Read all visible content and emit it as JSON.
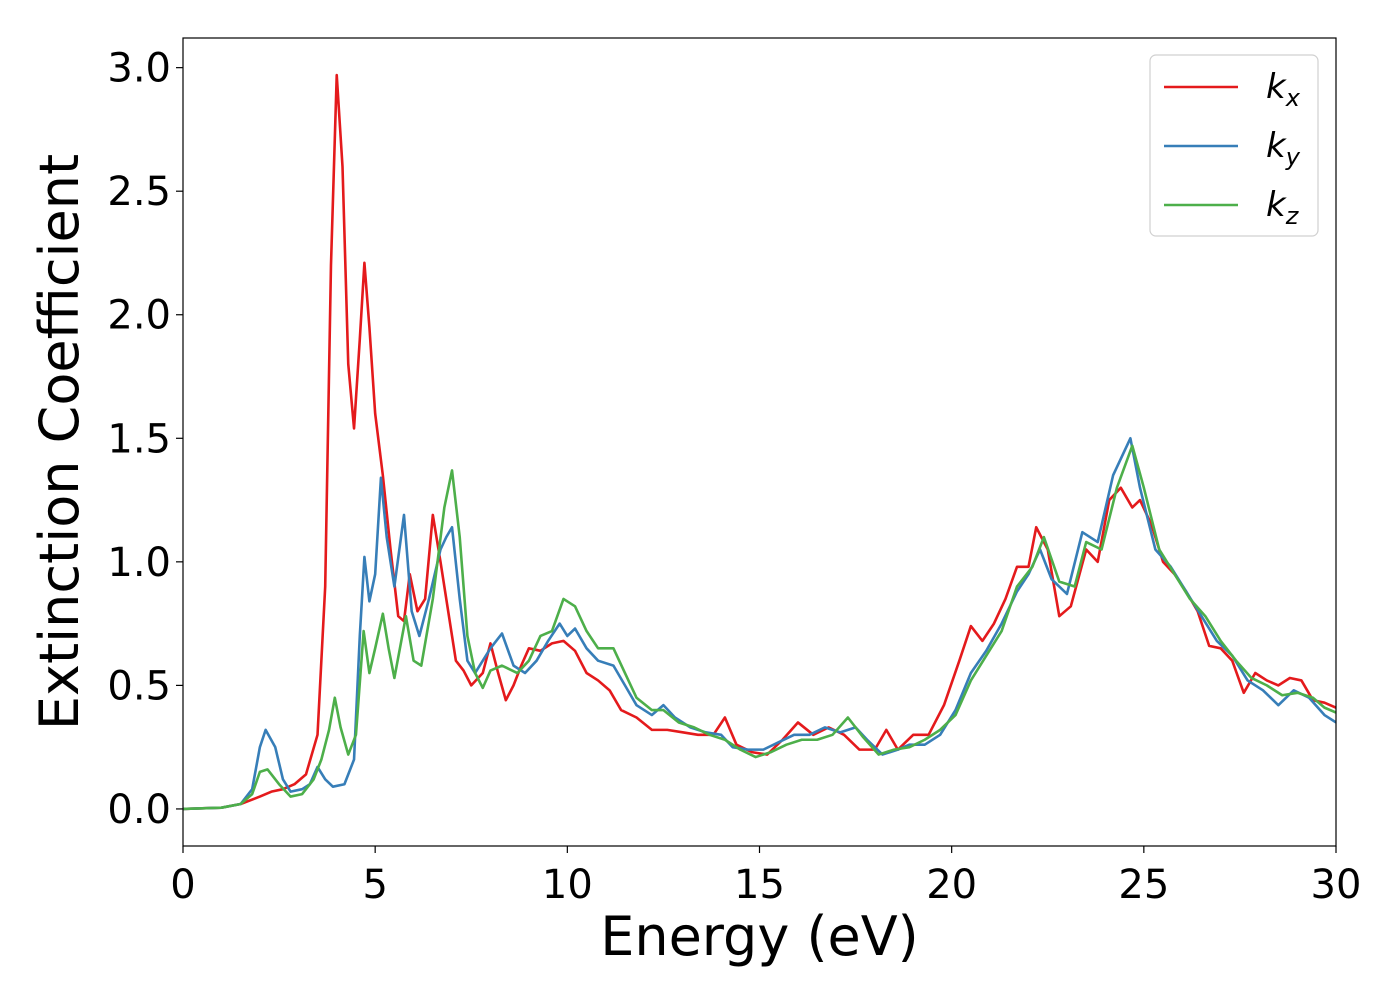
{
  "chart_data": {
    "type": "line",
    "title": "",
    "xlabel": "Energy (eV)",
    "ylabel": "Extinction Coefficient",
    "xlim": [
      0,
      30
    ],
    "ylim": [
      -0.15,
      3.12
    ],
    "xticks": [
      0,
      5,
      10,
      15,
      20,
      25,
      30
    ],
    "xtick_labels": [
      "0",
      "5",
      "10",
      "15",
      "20",
      "25",
      "30"
    ],
    "yticks": [
      0.0,
      0.5,
      1.0,
      1.5,
      2.0,
      2.5,
      3.0
    ],
    "ytick_labels": [
      "0.0",
      "0.5",
      "1.0",
      "1.5",
      "2.0",
      "2.5",
      "3.0"
    ],
    "grid": false,
    "legend_position": "top-right",
    "series": [
      {
        "name": "k",
        "subscript": "x",
        "color": "#e41a1c",
        "points": [
          [
            0,
            0
          ],
          [
            1,
            0.005
          ],
          [
            1.5,
            0.02
          ],
          [
            2,
            0.05
          ],
          [
            2.3,
            0.07
          ],
          [
            2.6,
            0.08
          ],
          [
            2.9,
            0.1
          ],
          [
            3.2,
            0.14
          ],
          [
            3.5,
            0.3
          ],
          [
            3.7,
            0.9
          ],
          [
            3.85,
            2.2
          ],
          [
            4.0,
            2.97
          ],
          [
            4.15,
            2.6
          ],
          [
            4.3,
            1.8
          ],
          [
            4.45,
            1.54
          ],
          [
            4.6,
            1.9
          ],
          [
            4.72,
            2.21
          ],
          [
            4.85,
            1.95
          ],
          [
            5.0,
            1.6
          ],
          [
            5.2,
            1.35
          ],
          [
            5.4,
            1.05
          ],
          [
            5.6,
            0.78
          ],
          [
            5.75,
            0.76
          ],
          [
            5.9,
            0.95
          ],
          [
            6.1,
            0.8
          ],
          [
            6.3,
            0.85
          ],
          [
            6.5,
            1.19
          ],
          [
            6.7,
            1.0
          ],
          [
            6.9,
            0.8
          ],
          [
            7.1,
            0.6
          ],
          [
            7.3,
            0.56
          ],
          [
            7.5,
            0.5
          ],
          [
            7.8,
            0.55
          ],
          [
            8.0,
            0.67
          ],
          [
            8.2,
            0.55
          ],
          [
            8.4,
            0.44
          ],
          [
            8.6,
            0.5
          ],
          [
            8.8,
            0.58
          ],
          [
            9.0,
            0.65
          ],
          [
            9.3,
            0.64
          ],
          [
            9.6,
            0.67
          ],
          [
            9.9,
            0.68
          ],
          [
            10.2,
            0.64
          ],
          [
            10.5,
            0.55
          ],
          [
            10.8,
            0.52
          ],
          [
            11.1,
            0.48
          ],
          [
            11.4,
            0.4
          ],
          [
            11.8,
            0.37
          ],
          [
            12.2,
            0.32
          ],
          [
            12.6,
            0.32
          ],
          [
            13.0,
            0.31
          ],
          [
            13.4,
            0.3
          ],
          [
            13.8,
            0.3
          ],
          [
            14.1,
            0.37
          ],
          [
            14.4,
            0.26
          ],
          [
            14.8,
            0.23
          ],
          [
            15.2,
            0.22
          ],
          [
            15.6,
            0.28
          ],
          [
            16.0,
            0.35
          ],
          [
            16.4,
            0.3
          ],
          [
            16.8,
            0.33
          ],
          [
            17.2,
            0.3
          ],
          [
            17.6,
            0.24
          ],
          [
            18.0,
            0.24
          ],
          [
            18.3,
            0.32
          ],
          [
            18.6,
            0.24
          ],
          [
            19.0,
            0.3
          ],
          [
            19.4,
            0.3
          ],
          [
            19.8,
            0.42
          ],
          [
            20.2,
            0.6
          ],
          [
            20.5,
            0.74
          ],
          [
            20.8,
            0.68
          ],
          [
            21.1,
            0.75
          ],
          [
            21.4,
            0.85
          ],
          [
            21.7,
            0.98
          ],
          [
            22.0,
            0.98
          ],
          [
            22.2,
            1.14
          ],
          [
            22.5,
            1.05
          ],
          [
            22.8,
            0.78
          ],
          [
            23.1,
            0.82
          ],
          [
            23.5,
            1.05
          ],
          [
            23.8,
            1.0
          ],
          [
            24.1,
            1.25
          ],
          [
            24.4,
            1.3
          ],
          [
            24.7,
            1.22
          ],
          [
            24.9,
            1.25
          ],
          [
            25.2,
            1.15
          ],
          [
            25.5,
            1.0
          ],
          [
            25.8,
            0.95
          ],
          [
            26.1,
            0.88
          ],
          [
            26.4,
            0.8
          ],
          [
            26.7,
            0.66
          ],
          [
            27.0,
            0.65
          ],
          [
            27.3,
            0.6
          ],
          [
            27.6,
            0.47
          ],
          [
            27.9,
            0.55
          ],
          [
            28.2,
            0.52
          ],
          [
            28.5,
            0.5
          ],
          [
            28.8,
            0.53
          ],
          [
            29.1,
            0.52
          ],
          [
            29.4,
            0.44
          ],
          [
            29.7,
            0.43
          ],
          [
            30,
            0.41
          ]
        ]
      },
      {
        "name": "k",
        "subscript": "y",
        "color": "#377eb8",
        "points": [
          [
            0,
            0
          ],
          [
            1,
            0.005
          ],
          [
            1.5,
            0.02
          ],
          [
            1.8,
            0.08
          ],
          [
            2.0,
            0.25
          ],
          [
            2.15,
            0.32
          ],
          [
            2.4,
            0.25
          ],
          [
            2.6,
            0.12
          ],
          [
            2.8,
            0.07
          ],
          [
            3.1,
            0.08
          ],
          [
            3.3,
            0.1
          ],
          [
            3.5,
            0.17
          ],
          [
            3.7,
            0.12
          ],
          [
            3.9,
            0.09
          ],
          [
            4.2,
            0.1
          ],
          [
            4.45,
            0.2
          ],
          [
            4.6,
            0.7
          ],
          [
            4.72,
            1.02
          ],
          [
            4.85,
            0.84
          ],
          [
            5.0,
            0.95
          ],
          [
            5.15,
            1.34
          ],
          [
            5.3,
            1.1
          ],
          [
            5.5,
            0.9
          ],
          [
            5.75,
            1.19
          ],
          [
            5.95,
            0.8
          ],
          [
            6.15,
            0.7
          ],
          [
            6.4,
            0.85
          ],
          [
            6.7,
            1.05
          ],
          [
            6.85,
            1.1
          ],
          [
            7.0,
            1.14
          ],
          [
            7.2,
            0.85
          ],
          [
            7.4,
            0.6
          ],
          [
            7.6,
            0.55
          ],
          [
            7.8,
            0.6
          ],
          [
            8.0,
            0.65
          ],
          [
            8.3,
            0.71
          ],
          [
            8.6,
            0.58
          ],
          [
            8.9,
            0.55
          ],
          [
            9.2,
            0.6
          ],
          [
            9.5,
            0.68
          ],
          [
            9.8,
            0.75
          ],
          [
            10.0,
            0.7
          ],
          [
            10.2,
            0.73
          ],
          [
            10.5,
            0.65
          ],
          [
            10.8,
            0.6
          ],
          [
            11.2,
            0.58
          ],
          [
            11.5,
            0.5
          ],
          [
            11.8,
            0.42
          ],
          [
            12.2,
            0.38
          ],
          [
            12.5,
            0.42
          ],
          [
            12.8,
            0.37
          ],
          [
            13.2,
            0.33
          ],
          [
            13.6,
            0.31
          ],
          [
            14.0,
            0.3
          ],
          [
            14.3,
            0.25
          ],
          [
            14.7,
            0.24
          ],
          [
            15.1,
            0.24
          ],
          [
            15.5,
            0.27
          ],
          [
            15.9,
            0.3
          ],
          [
            16.3,
            0.3
          ],
          [
            16.7,
            0.33
          ],
          [
            17.1,
            0.31
          ],
          [
            17.5,
            0.33
          ],
          [
            17.8,
            0.28
          ],
          [
            18.2,
            0.22
          ],
          [
            18.6,
            0.24
          ],
          [
            18.9,
            0.26
          ],
          [
            19.3,
            0.26
          ],
          [
            19.7,
            0.3
          ],
          [
            20.1,
            0.4
          ],
          [
            20.5,
            0.55
          ],
          [
            20.9,
            0.64
          ],
          [
            21.3,
            0.75
          ],
          [
            21.7,
            0.88
          ],
          [
            22.0,
            0.95
          ],
          [
            22.3,
            1.05
          ],
          [
            22.6,
            0.93
          ],
          [
            23.0,
            0.87
          ],
          [
            23.4,
            1.12
          ],
          [
            23.8,
            1.08
          ],
          [
            24.2,
            1.35
          ],
          [
            24.65,
            1.5
          ],
          [
            24.9,
            1.3
          ],
          [
            25.3,
            1.05
          ],
          [
            25.7,
            0.98
          ],
          [
            26.1,
            0.88
          ],
          [
            26.5,
            0.78
          ],
          [
            26.9,
            0.68
          ],
          [
            27.3,
            0.62
          ],
          [
            27.7,
            0.52
          ],
          [
            28.1,
            0.48
          ],
          [
            28.5,
            0.42
          ],
          [
            28.9,
            0.48
          ],
          [
            29.3,
            0.45
          ],
          [
            29.7,
            0.38
          ],
          [
            30,
            0.35
          ]
        ]
      },
      {
        "name": "k",
        "subscript": "z",
        "color": "#4daf4a",
        "points": [
          [
            0,
            0
          ],
          [
            1,
            0.005
          ],
          [
            1.5,
            0.02
          ],
          [
            1.8,
            0.06
          ],
          [
            2.0,
            0.15
          ],
          [
            2.2,
            0.16
          ],
          [
            2.5,
            0.1
          ],
          [
            2.8,
            0.05
          ],
          [
            3.1,
            0.06
          ],
          [
            3.4,
            0.12
          ],
          [
            3.6,
            0.2
          ],
          [
            3.8,
            0.32
          ],
          [
            3.95,
            0.45
          ],
          [
            4.1,
            0.33
          ],
          [
            4.3,
            0.22
          ],
          [
            4.5,
            0.3
          ],
          [
            4.7,
            0.72
          ],
          [
            4.85,
            0.55
          ],
          [
            5.0,
            0.65
          ],
          [
            5.2,
            0.79
          ],
          [
            5.35,
            0.65
          ],
          [
            5.5,
            0.53
          ],
          [
            5.8,
            0.78
          ],
          [
            6.0,
            0.6
          ],
          [
            6.2,
            0.58
          ],
          [
            6.5,
            0.85
          ],
          [
            6.8,
            1.22
          ],
          [
            7.0,
            1.37
          ],
          [
            7.2,
            1.1
          ],
          [
            7.4,
            0.7
          ],
          [
            7.6,
            0.55
          ],
          [
            7.8,
            0.49
          ],
          [
            8.0,
            0.56
          ],
          [
            8.3,
            0.58
          ],
          [
            8.7,
            0.55
          ],
          [
            9.0,
            0.6
          ],
          [
            9.3,
            0.7
          ],
          [
            9.6,
            0.72
          ],
          [
            9.9,
            0.85
          ],
          [
            10.2,
            0.82
          ],
          [
            10.5,
            0.72
          ],
          [
            10.8,
            0.65
          ],
          [
            11.2,
            0.65
          ],
          [
            11.5,
            0.55
          ],
          [
            11.8,
            0.45
          ],
          [
            12.2,
            0.4
          ],
          [
            12.5,
            0.4
          ],
          [
            12.9,
            0.35
          ],
          [
            13.3,
            0.33
          ],
          [
            13.7,
            0.3
          ],
          [
            14.1,
            0.28
          ],
          [
            14.5,
            0.24
          ],
          [
            14.9,
            0.21
          ],
          [
            15.3,
            0.23
          ],
          [
            15.7,
            0.26
          ],
          [
            16.1,
            0.28
          ],
          [
            16.5,
            0.28
          ],
          [
            16.9,
            0.3
          ],
          [
            17.3,
            0.37
          ],
          [
            17.7,
            0.29
          ],
          [
            18.1,
            0.22
          ],
          [
            18.5,
            0.24
          ],
          [
            18.9,
            0.25
          ],
          [
            19.3,
            0.28
          ],
          [
            19.7,
            0.32
          ],
          [
            20.1,
            0.38
          ],
          [
            20.5,
            0.52
          ],
          [
            20.9,
            0.62
          ],
          [
            21.3,
            0.72
          ],
          [
            21.7,
            0.9
          ],
          [
            22.1,
            0.98
          ],
          [
            22.4,
            1.1
          ],
          [
            22.8,
            0.92
          ],
          [
            23.2,
            0.9
          ],
          [
            23.5,
            1.08
          ],
          [
            23.9,
            1.05
          ],
          [
            24.3,
            1.3
          ],
          [
            24.7,
            1.47
          ],
          [
            25.0,
            1.3
          ],
          [
            25.4,
            1.05
          ],
          [
            25.8,
            0.95
          ],
          [
            26.2,
            0.85
          ],
          [
            26.6,
            0.78
          ],
          [
            27.0,
            0.68
          ],
          [
            27.4,
            0.6
          ],
          [
            27.8,
            0.53
          ],
          [
            28.2,
            0.5
          ],
          [
            28.6,
            0.46
          ],
          [
            29.0,
            0.47
          ],
          [
            29.4,
            0.45
          ],
          [
            29.7,
            0.41
          ],
          [
            30,
            0.39
          ]
        ]
      }
    ]
  }
}
